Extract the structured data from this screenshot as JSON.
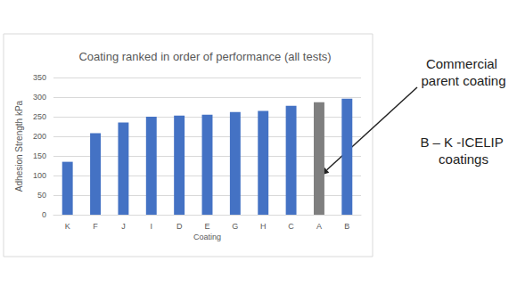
{
  "chart_data": {
    "type": "bar",
    "title": "Coating ranked in order of performance (all tests)",
    "x_label": "Coating",
    "y_label": "Adhesion Strength kPa",
    "categories": [
      "K",
      "F",
      "J",
      "I",
      "D",
      "E",
      "G",
      "H",
      "C",
      "A",
      "B"
    ],
    "values": [
      135,
      208,
      235,
      250,
      253,
      255,
      262,
      265,
      278,
      287,
      296
    ],
    "colors": [
      "#4472c4",
      "#4472c4",
      "#4472c4",
      "#4472c4",
      "#4472c4",
      "#4472c4",
      "#4472c4",
      "#4472c4",
      "#4472c4",
      "#7f7f7f",
      "#4472c4"
    ],
    "ylim": [
      0,
      350
    ],
    "yticks": [
      0,
      50,
      100,
      150,
      200,
      250,
      300,
      350
    ],
    "grid": true,
    "annotations": [
      "Commercial parent coating",
      "B – K -ICELIP coatings"
    ]
  }
}
